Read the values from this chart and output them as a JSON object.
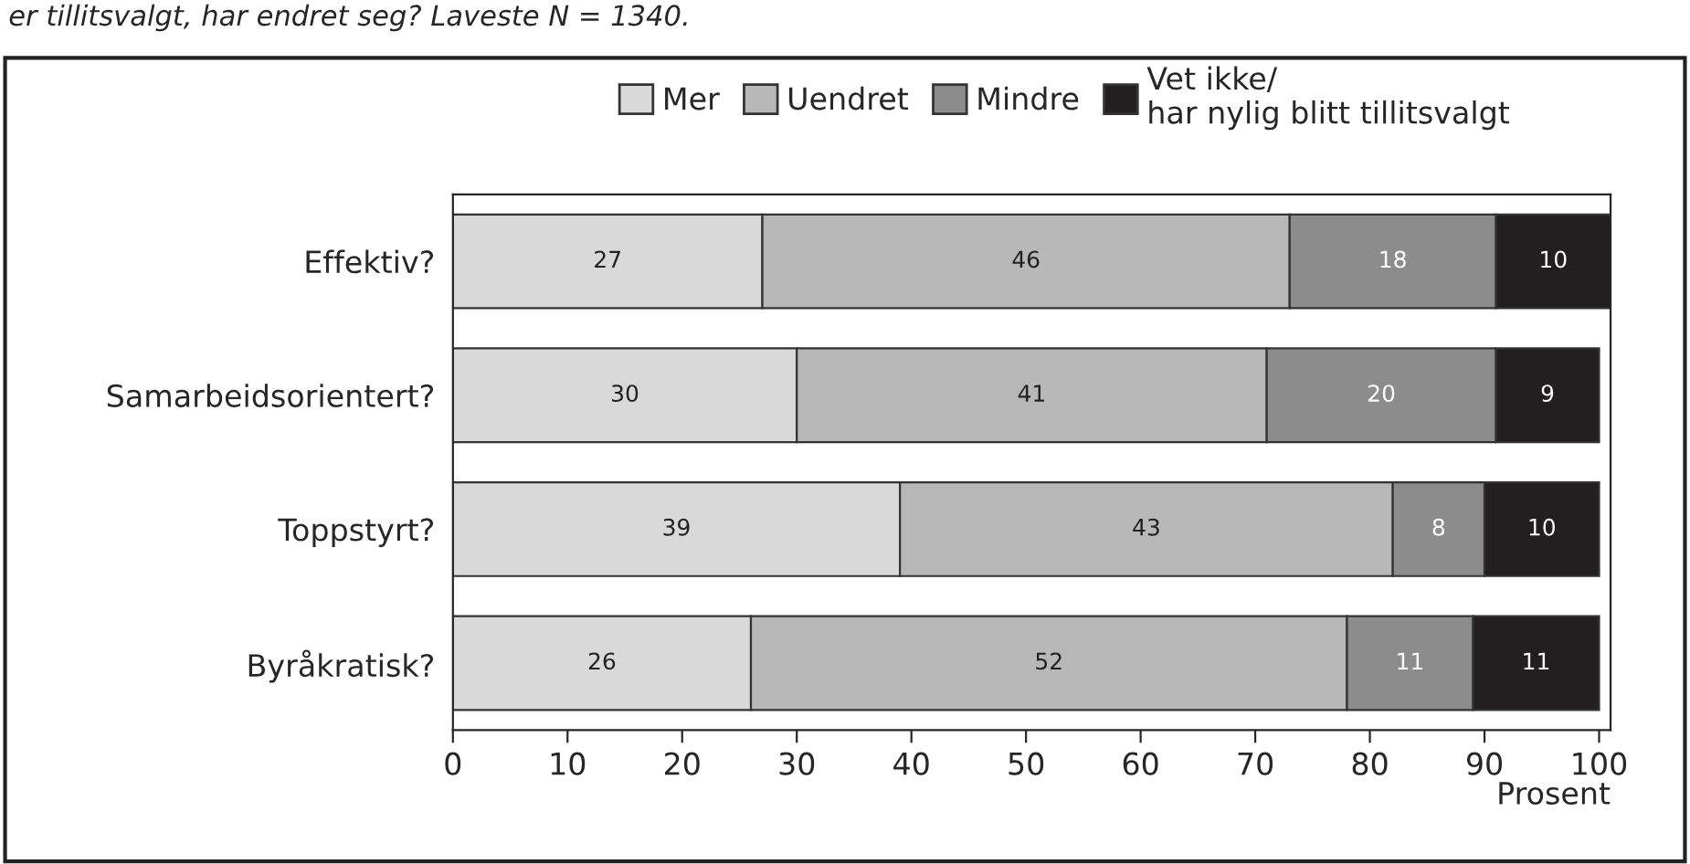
{
  "chart_data": {
    "type": "bar",
    "orientation": "horizontal",
    "stacked": true,
    "title": "er tillitsvalgt, har endret seg? Laveste N = 1340.",
    "categories": [
      "Effektiv?",
      "Samarbeidsorientert?",
      "Toppstyrt?",
      "Byråkratisk?"
    ],
    "series": [
      {
        "name": "Mer",
        "color": "#d9d9d9",
        "values": [
          27,
          30,
          39,
          26
        ]
      },
      {
        "name": "Uendret",
        "color": "#b8b8b8",
        "values": [
          46,
          41,
          43,
          52
        ]
      },
      {
        "name": "Mindre",
        "color": "#8c8c8c",
        "values": [
          18,
          20,
          8,
          11
        ]
      },
      {
        "name": "Vet ikke/\nhar nylig blitt tillitsvalgt",
        "color": "#231f20",
        "values": [
          10,
          9,
          10,
          11
        ]
      }
    ],
    "xlim": [
      0,
      101
    ],
    "xticks": [
      0,
      10,
      20,
      30,
      40,
      50,
      60,
      70,
      80,
      90,
      100
    ],
    "xlabel": "Prosent",
    "data_labels": true,
    "legend": "top",
    "grid": false
  }
}
